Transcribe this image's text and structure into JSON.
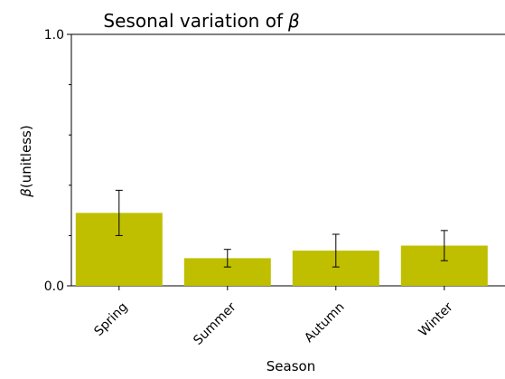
{
  "chart_data": {
    "type": "bar",
    "title": "Sesonal variation of",
    "title_symbol": "β",
    "xlabel": "Season",
    "ylabel_symbol": "β",
    "ylabel": "(unitless)",
    "categories": [
      "Spring",
      "Summer",
      "Autumn",
      "Winter"
    ],
    "values": [
      0.29,
      0.11,
      0.14,
      0.16
    ],
    "error": [
      0.09,
      0.035,
      0.065,
      0.06
    ],
    "ylim": [
      0.0,
      1.0
    ],
    "yticks": [
      "0.0",
      "1.0"
    ],
    "bar_color": "#bfbf00",
    "grid": false
  }
}
